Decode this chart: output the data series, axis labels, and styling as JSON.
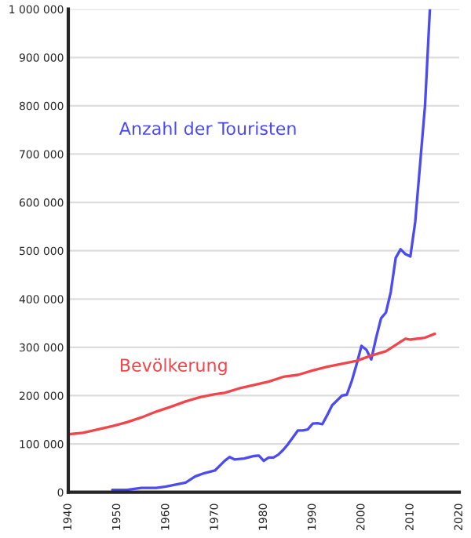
{
  "chart_data": {
    "type": "line",
    "xlim": [
      1940,
      2020
    ],
    "xticks": [
      1940,
      1950,
      1960,
      1970,
      1980,
      1990,
      2000,
      2010,
      2020
    ],
    "ylim": [
      0,
      1000000
    ],
    "yticks": [
      {
        "value": 0,
        "label": "0"
      },
      {
        "value": 100000,
        "label": "100 000"
      },
      {
        "value": 200000,
        "label": "200 000"
      },
      {
        "value": 300000,
        "label": "300 000"
      },
      {
        "value": 400000,
        "label": "400 000"
      },
      {
        "value": 500000,
        "label": "500 000"
      },
      {
        "value": 600000,
        "label": "600 000"
      },
      {
        "value": 700000,
        "label": "700 000"
      },
      {
        "value": 800000,
        "label": "800 000"
      },
      {
        "value": 900000,
        "label": "900 000"
      },
      {
        "value": 1000000,
        "label": "1 000 000"
      }
    ],
    "grid": "y",
    "legend": false,
    "series": [
      {
        "name": "Anzahl der Touristen",
        "color": "#4b4bf0",
        "x": [
          1949,
          1952,
          1955,
          1958,
          1960,
          1962,
          1964,
          1966,
          1968,
          1970,
          1972,
          1973,
          1974,
          1976,
          1978,
          1979,
          1980,
          1981,
          1982,
          1983,
          1984,
          1985,
          1987,
          1988,
          1989,
          1990,
          1991,
          1992,
          1993,
          1994,
          1996,
          1997,
          1998,
          1999,
          2000,
          2001,
          2002,
          2003,
          2004,
          2005,
          2006,
          2007,
          2008,
          2009,
          2010,
          2011,
          2012,
          2013,
          2014
        ],
        "values": [
          5000,
          5000,
          9000,
          9000,
          12000,
          16000,
          20000,
          33000,
          40000,
          45000,
          65000,
          73000,
          68000,
          70000,
          75000,
          76000,
          65000,
          72000,
          72000,
          78000,
          88000,
          100000,
          128000,
          128000,
          130000,
          142000,
          143000,
          141000,
          160000,
          180000,
          200000,
          202000,
          230000,
          265000,
          303000,
          295000,
          275000,
          320000,
          360000,
          372000,
          415000,
          485000,
          503000,
          493000,
          488000,
          560000,
          680000,
          800000,
          1000000
        ]
      },
      {
        "name": "Bevölkerung",
        "color": "#f0464b",
        "x": [
          1940,
          1943,
          1946,
          1949,
          1952,
          1955,
          1958,
          1961,
          1964,
          1967,
          1970,
          1972,
          1975,
          1978,
          1981,
          1984,
          1987,
          1990,
          1993,
          1996,
          1999,
          2002,
          2005,
          2007,
          2009,
          2010,
          2013,
          2015
        ],
        "values": [
          120000,
          123000,
          130000,
          137000,
          145000,
          155000,
          167000,
          177000,
          188000,
          197000,
          203000,
          206000,
          215000,
          222000,
          229000,
          239000,
          243000,
          252000,
          260000,
          266000,
          272000,
          283000,
          292000,
          305000,
          318000,
          316000,
          320000,
          328000
        ]
      }
    ]
  }
}
